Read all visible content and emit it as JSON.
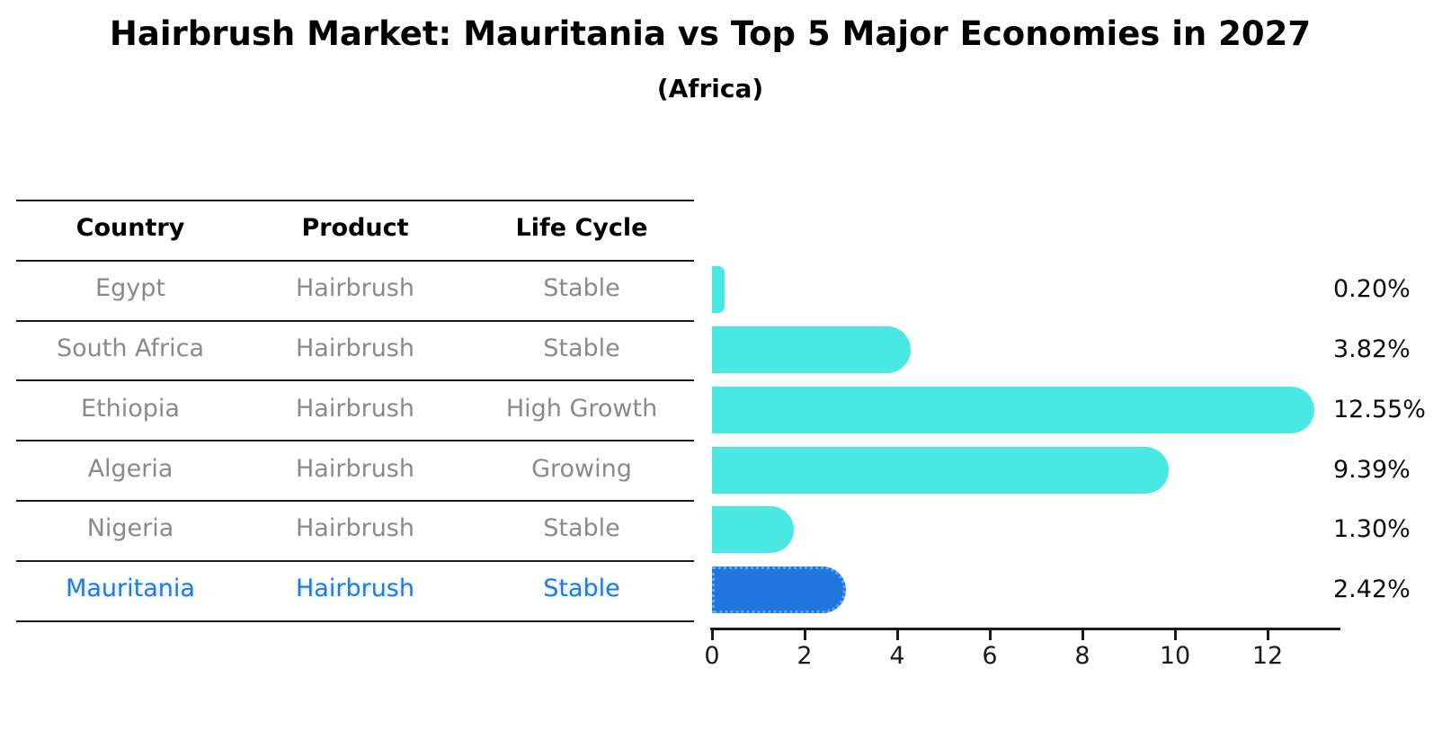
{
  "title": "Hairbrush Market: Mauritania vs Top 5 Major Economies in 2027",
  "subtitle": "(Africa)",
  "table": {
    "columns": [
      "Country",
      "Product",
      "Life Cycle"
    ],
    "rows": [
      {
        "country": "Egypt",
        "product": "Hairbrush",
        "life_cycle": "Stable",
        "highlight": false
      },
      {
        "country": "South Africa",
        "product": "Hairbrush",
        "life_cycle": "Stable",
        "highlight": false
      },
      {
        "country": "Ethiopia",
        "product": "Hairbrush",
        "life_cycle": "High Growth",
        "highlight": false
      },
      {
        "country": "Algeria",
        "product": "Hairbrush",
        "life_cycle": "Growing",
        "highlight": false
      },
      {
        "country": "Nigeria",
        "product": "Hairbrush",
        "life_cycle": "Stable",
        "highlight": false
      },
      {
        "country": "Mauritania",
        "product": "Hairbrush",
        "life_cycle": "Stable",
        "highlight": true
      }
    ]
  },
  "chart_data": {
    "type": "bar",
    "orientation": "horizontal",
    "title": "Hairbrush Market: Mauritania vs Top 5 Major Economies in 2027",
    "subtitle": "(Africa)",
    "categories": [
      "Egypt",
      "South Africa",
      "Ethiopia",
      "Algeria",
      "Nigeria",
      "Mauritania"
    ],
    "values": [
      0.2,
      3.82,
      12.55,
      9.39,
      1.3,
      2.42
    ],
    "value_labels": [
      "0.20%",
      "3.82%",
      "12.55%",
      "9.39%",
      "1.30%",
      "2.42%"
    ],
    "x_ticks": [
      0,
      2,
      4,
      6,
      8,
      10,
      12
    ],
    "xlim": [
      0,
      13.5
    ],
    "grid": false,
    "legend": "none",
    "bar_color": "#49e8e2",
    "highlight_index": 5,
    "highlight_bar_color": "#2176de",
    "highlight_bar_border": "dotted",
    "highlight_border_color": "#5fa8f0",
    "row_text_color": "#8a8a8a",
    "highlight_text_color": "#2479dc",
    "axis_color": "#1a1a1a"
  }
}
